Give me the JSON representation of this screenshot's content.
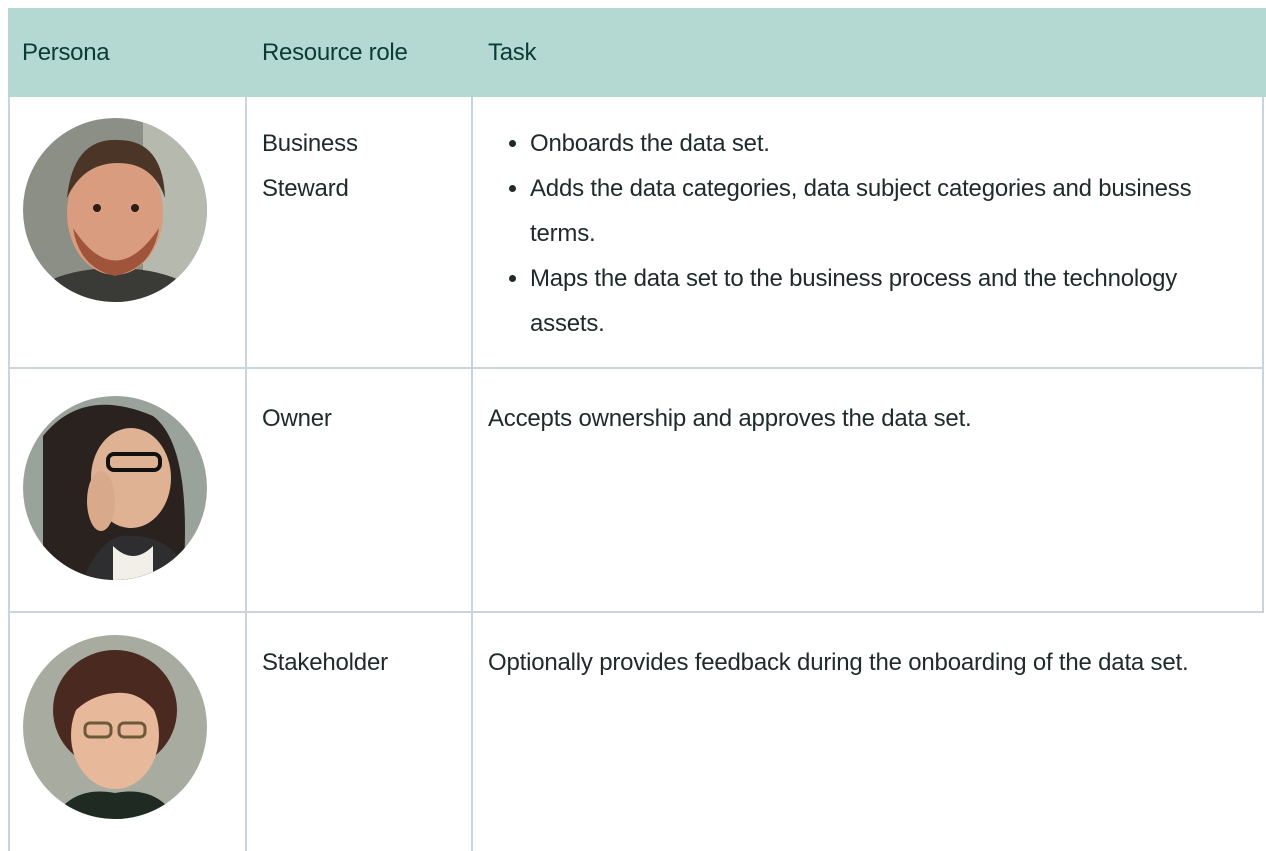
{
  "table": {
    "header": [
      "Persona",
      "Resource role",
      "Task"
    ],
    "rows": [
      {
        "role": "Business Steward",
        "tasks": [
          "Onboards the data set.",
          "Adds the data categories, data subject categories and business terms.",
          "Maps the data set to the business process and the technology assets."
        ]
      },
      {
        "role": "Owner",
        "task": "Accepts ownership and approves the data set."
      },
      {
        "role": "Stakeholder",
        "task": "Optionally provides feedback during the onboarding of the data set."
      }
    ]
  }
}
